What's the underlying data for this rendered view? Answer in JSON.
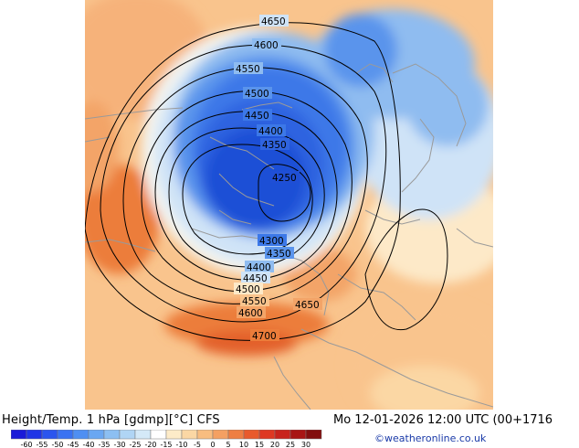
{
  "header": {
    "title_left": "Height/Temp. 1 hPa [gdmp][°C] CFS",
    "title_right": "Mo 12-01-2026 12:00 UTC (00+1716",
    "credit": "©weatheronline.co.uk"
  },
  "map": {
    "contour_labels": [
      "4650",
      "4600",
      "4550",
      "4500",
      "4450",
      "4400",
      "4350",
      "4250",
      "4300",
      "4350",
      "4400",
      "4450",
      "4500",
      "4550",
      "4600",
      "4650",
      "4700"
    ],
    "colors": {
      "deep_blue": "#1f4fd6",
      "mid_blue": "#3c78e8",
      "light_blue": "#8fbcf0",
      "pale_blue": "#cfe3f7",
      "cream": "#fde9c8",
      "light_orange": "#f9c48d",
      "orange": "#f3a468",
      "deep_orange": "#ec7d3a",
      "red_orange": "#e3602a"
    }
  },
  "colorbar": {
    "labels": [
      "-60",
      "-55",
      "-50",
      "-45",
      "-40",
      "-35",
      "-30",
      "-25",
      "-20",
      "-15",
      "-10",
      "-5",
      "0",
      "5",
      "10",
      "15",
      "20",
      "25",
      "30"
    ],
    "colors": [
      "#1a1ad8",
      "#2035e6",
      "#2b55ee",
      "#3a72f2",
      "#4f8ff2",
      "#6aa7f2",
      "#8cbff2",
      "#b0d5f5",
      "#d4e9f8",
      "#ffffff",
      "#fdebc8",
      "#fbd7a4",
      "#f8bd80",
      "#f4a062",
      "#ee7e42",
      "#e85a2c",
      "#de3822",
      "#c8231c",
      "#a81514",
      "#820e0e"
    ]
  }
}
